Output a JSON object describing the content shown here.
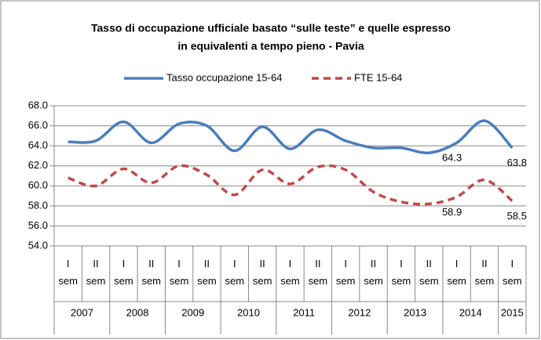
{
  "chart_data": {
    "type": "line",
    "title": [
      "Tasso di occupazione ufficiale basato “sulle teste” e quelle espresso",
      "in equivalenti a tempo pieno - Pavia"
    ],
    "categories": [
      "I sem",
      "II sem",
      "I sem",
      "II sem",
      "I sem",
      "II sem",
      "I sem",
      "II sem",
      "I sem",
      "II sem",
      "I sem",
      "II sem",
      "I sem",
      "II sem",
      "I sem",
      "II sem",
      "I sem"
    ],
    "category_groups": [
      {
        "label": "2007",
        "size": 2
      },
      {
        "label": "2008",
        "size": 2
      },
      {
        "label": "2009",
        "size": 2
      },
      {
        "label": "2010",
        "size": 2
      },
      {
        "label": "2011",
        "size": 2
      },
      {
        "label": "2012",
        "size": 2
      },
      {
        "label": "2013",
        "size": 2
      },
      {
        "label": "2014",
        "size": 2
      },
      {
        "label": "2015",
        "size": 1
      }
    ],
    "series": [
      {
        "name": "Tasso occupazione 15-64",
        "color": "#4a7ebb",
        "dash": false,
        "values": [
          64.4,
          64.5,
          66.4,
          64.3,
          66.2,
          66.0,
          63.5,
          65.9,
          63.7,
          65.6,
          64.5,
          63.8,
          63.8,
          63.3,
          64.3,
          66.5,
          63.8
        ],
        "label_indices": [
          14,
          16
        ]
      },
      {
        "name": "FTE 15-64",
        "color": "#be4b48",
        "dash": true,
        "values": [
          60.8,
          60.0,
          61.7,
          60.3,
          62.0,
          61.1,
          59.1,
          61.6,
          60.2,
          61.9,
          61.6,
          59.4,
          58.4,
          58.2,
          58.9,
          60.6,
          58.5
        ],
        "label_indices": [
          14,
          16
        ]
      }
    ],
    "ylim": [
      54,
      68
    ],
    "yticks": [
      {
        "value": 54,
        "label": "54.0"
      },
      {
        "value": 56,
        "label": "56.0"
      },
      {
        "value": 58,
        "label": "58.0"
      },
      {
        "value": 60,
        "label": "60.0"
      },
      {
        "value": 62,
        "label": "62.0"
      },
      {
        "value": 64,
        "label": "64.0"
      },
      {
        "value": 66,
        "label": "66.0"
      },
      {
        "value": 68,
        "label": "68.0"
      }
    ],
    "grid": true,
    "legend": "top"
  }
}
